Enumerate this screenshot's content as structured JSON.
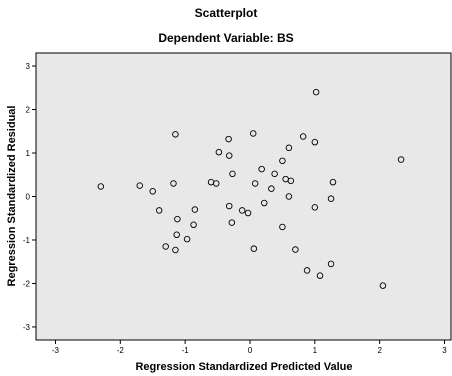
{
  "chart_data": {
    "type": "scatter",
    "title": "Scatterplot",
    "subtitle": "Dependent Variable: BS",
    "xlabel": "Regression Standardized Predicted Value",
    "ylabel": "Regression Standardized Residual",
    "xlim": [
      -3.3,
      3.1
    ],
    "ylim": [
      -3.3,
      3.3
    ],
    "xticks": [
      -3,
      -2,
      -1,
      0,
      1,
      2,
      3
    ],
    "yticks": [
      -3,
      -2,
      -1,
      0,
      1,
      2,
      3
    ],
    "grid": false,
    "colors": {
      "plot_background": "#e8e8e8",
      "frame": "#000000",
      "marker_stroke": "#000000"
    },
    "points": [
      {
        "x": -2.3,
        "y": 0.23
      },
      {
        "x": -1.7,
        "y": 0.25
      },
      {
        "x": -1.5,
        "y": 0.12
      },
      {
        "x": -1.4,
        "y": -0.32
      },
      {
        "x": -1.3,
        "y": -1.15
      },
      {
        "x": -1.15,
        "y": 1.43
      },
      {
        "x": -1.18,
        "y": 0.3
      },
      {
        "x": -1.12,
        "y": -0.52
      },
      {
        "x": -1.13,
        "y": -0.88
      },
      {
        "x": -1.15,
        "y": -1.23
      },
      {
        "x": -0.97,
        "y": -0.98
      },
      {
        "x": -0.85,
        "y": -0.3
      },
      {
        "x": -0.87,
        "y": -0.65
      },
      {
        "x": -0.6,
        "y": 0.33
      },
      {
        "x": -0.52,
        "y": 0.3
      },
      {
        "x": -0.48,
        "y": 1.02
      },
      {
        "x": -0.33,
        "y": 1.32
      },
      {
        "x": -0.32,
        "y": 0.94
      },
      {
        "x": -0.27,
        "y": 0.52
      },
      {
        "x": -0.32,
        "y": -0.22
      },
      {
        "x": -0.28,
        "y": -0.6
      },
      {
        "x": -0.12,
        "y": -0.32
      },
      {
        "x": -0.03,
        "y": -0.38
      },
      {
        "x": 0.05,
        "y": 1.45
      },
      {
        "x": 0.08,
        "y": 0.3
      },
      {
        "x": 0.06,
        "y": -1.2
      },
      {
        "x": 0.18,
        "y": 0.63
      },
      {
        "x": 0.22,
        "y": -0.15
      },
      {
        "x": 0.33,
        "y": 0.18
      },
      {
        "x": 0.38,
        "y": 0.52
      },
      {
        "x": 0.5,
        "y": 0.82
      },
      {
        "x": 0.55,
        "y": 0.4
      },
      {
        "x": 0.6,
        "y": 1.12
      },
      {
        "x": 0.63,
        "y": 0.36
      },
      {
        "x": 0.5,
        "y": -0.7
      },
      {
        "x": 0.6,
        "y": 0.0
      },
      {
        "x": 0.7,
        "y": -1.22
      },
      {
        "x": 0.82,
        "y": 1.38
      },
      {
        "x": 0.88,
        "y": -1.7
      },
      {
        "x": 1.0,
        "y": 1.25
      },
      {
        "x": 1.0,
        "y": -0.25
      },
      {
        "x": 1.02,
        "y": 2.4
      },
      {
        "x": 1.08,
        "y": -1.82
      },
      {
        "x": 1.25,
        "y": -0.05
      },
      {
        "x": 1.28,
        "y": 0.33
      },
      {
        "x": 1.25,
        "y": -1.55
      },
      {
        "x": 2.05,
        "y": -2.05
      },
      {
        "x": 2.33,
        "y": 0.85
      }
    ]
  }
}
